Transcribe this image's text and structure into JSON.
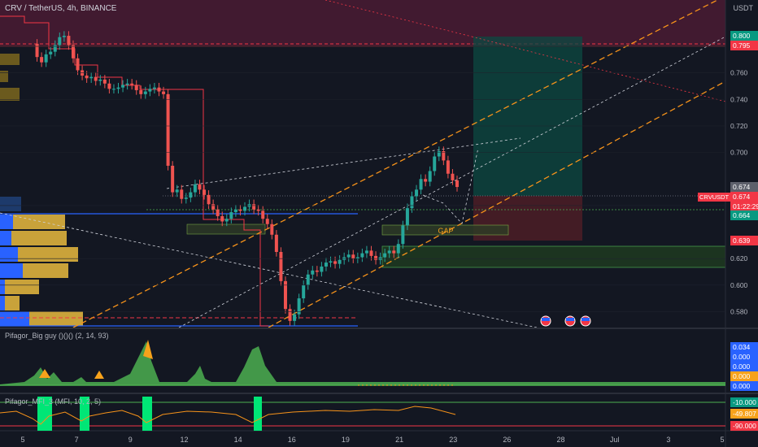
{
  "header": {
    "symbol_line": "CRV / TetherUS, 4h, BINANCE"
  },
  "price_axis": {
    "unit": "USDT",
    "ticks": [
      "0.780",
      "0.760",
      "0.740",
      "0.720",
      "0.700",
      "0.660",
      "0.620",
      "0.600",
      "0.580"
    ],
    "badges": [
      {
        "text": "0.800",
        "color": "#089981"
      },
      {
        "text": "0.795",
        "color": "#f23645"
      },
      {
        "text": "0.674",
        "color": "#5d606b"
      },
      {
        "text": "0.674",
        "color": "#f23645"
      },
      {
        "text": "01:22:29",
        "color": "#f23645"
      },
      {
        "text": "0.664",
        "color": "#089981"
      },
      {
        "text": "0.639",
        "color": "#f23645"
      }
    ],
    "symbol_badge": "CRVUSDT"
  },
  "time_axis": {
    "labels": [
      "5",
      "7",
      "9",
      "12",
      "14",
      "16",
      "19",
      "21",
      "23",
      "26",
      "28",
      "Jul",
      "3",
      "5"
    ]
  },
  "annotations": {
    "gap_label": "GAP"
  },
  "indicator1": {
    "label": "Pifagor_Big guy ()()() (2, 14, 93)",
    "values": [
      {
        "text": "0.034",
        "color": "#2962ff"
      },
      {
        "text": "0.000",
        "color": "#2962ff"
      },
      {
        "text": "0.000",
        "color": "#2962ff"
      },
      {
        "text": "0.000",
        "color": "#f7a21b"
      },
      {
        "text": "0.000",
        "color": "#2962ff"
      }
    ]
  },
  "indicator2": {
    "label": "Pifagor_MFI_3 (MFI, 10, 2, 5)",
    "values": [
      {
        "text": "-10.000",
        "color": "#089981"
      },
      {
        "text": "-49.807",
        "color": "#f7a21b"
      },
      {
        "text": "-90.000",
        "color": "#f23645"
      }
    ]
  },
  "chart_data": {
    "type": "candlestick",
    "title": "CRV / TetherUS, 4h, BINANCE",
    "ylim": [
      0.568,
      0.815
    ],
    "levels": {
      "take_profit": 0.8,
      "upper_red": 0.795,
      "last_price": 0.674,
      "support": 0.664,
      "stop": 0.639
    },
    "close_series": [
      0.782,
      0.772,
      0.768,
      0.774,
      0.776,
      0.781,
      0.787,
      0.788,
      0.781,
      0.771,
      0.762,
      0.758,
      0.756,
      0.757,
      0.754,
      0.755,
      0.752,
      0.748,
      0.748,
      0.749,
      0.751,
      0.752,
      0.751,
      0.747,
      0.744,
      0.746,
      0.748,
      0.749,
      0.746,
      0.744,
      0.69,
      0.67,
      0.672,
      0.665,
      0.666,
      0.67,
      0.676,
      0.672,
      0.668,
      0.661,
      0.657,
      0.652,
      0.648,
      0.65,
      0.655,
      0.657,
      0.656,
      0.659,
      0.661,
      0.657,
      0.656,
      0.65,
      0.646,
      0.638,
      0.625,
      0.603,
      0.582,
      0.573,
      0.578,
      0.59,
      0.6,
      0.608,
      0.611,
      0.61,
      0.614,
      0.617,
      0.618,
      0.616,
      0.619,
      0.621,
      0.623,
      0.62,
      0.621,
      0.624,
      0.626,
      0.622,
      0.619,
      0.621,
      0.624,
      0.626,
      0.624,
      0.631,
      0.645,
      0.658,
      0.667,
      0.672,
      0.68,
      0.678,
      0.686,
      0.697,
      0.701,
      0.694,
      0.684,
      0.679,
      0.674
    ]
  }
}
